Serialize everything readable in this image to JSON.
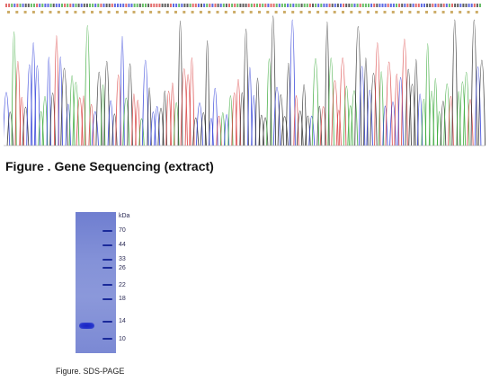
{
  "sequencing_figure": {
    "caption": "Figure . Gene Sequencing (extract)",
    "trace_colors": {
      "A": "#36a836",
      "C": "#2a3ad8",
      "G": "#2a2a2a",
      "T": "#d83a3a"
    }
  },
  "sds_figure": {
    "caption": "Figure. SDS-PAGE",
    "unit_label": "kDa",
    "marker_labels": [
      "70",
      "44",
      "33",
      "26",
      "22",
      "18",
      "14",
      "10"
    ],
    "lane_color": "#7f8dd6",
    "band_color": "#1a24c2"
  }
}
